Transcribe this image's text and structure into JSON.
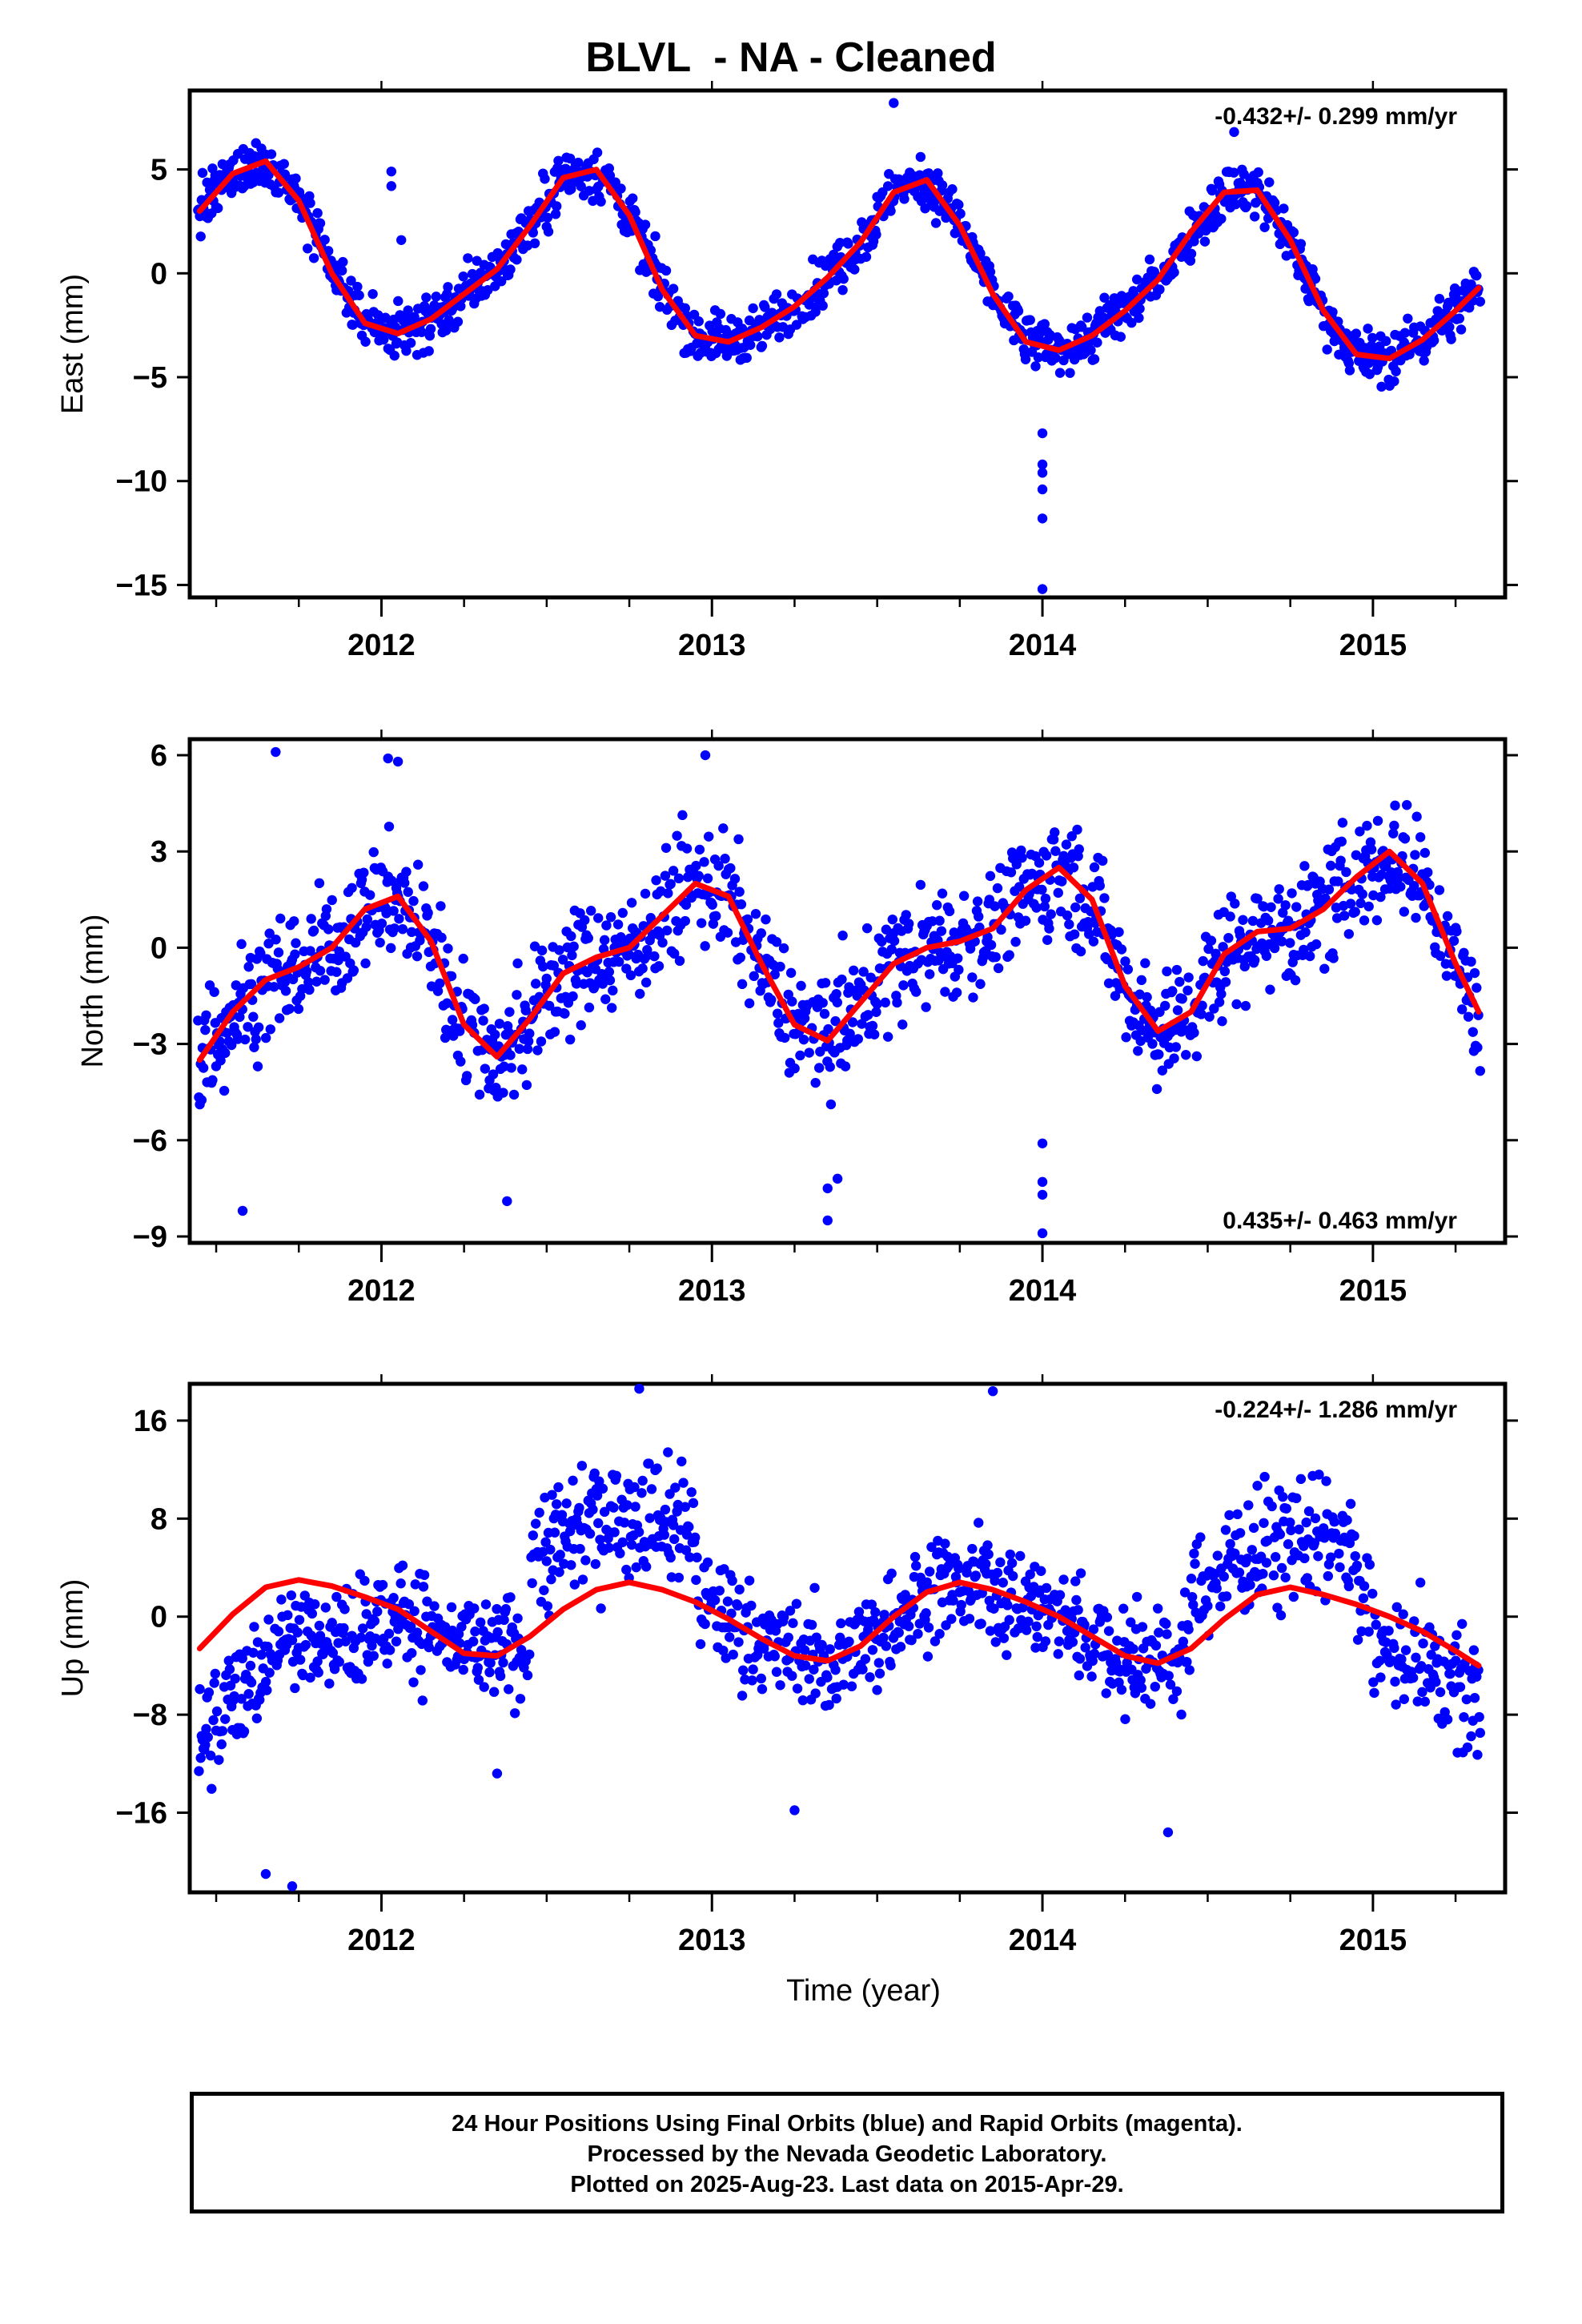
{
  "title": "BLVL  - NA - Cleaned",
  "colors": {
    "points": "#0000ff",
    "fit": "#ff0000",
    "frame": "#000000"
  },
  "chart_data": [
    {
      "type": "scatter",
      "ylabel": "East (mm)",
      "xlabel": "",
      "xlim": [
        2011.42,
        2015.4
      ],
      "ylim": [
        -15.6,
        8.8
      ],
      "x_ticks": [
        2012,
        2013,
        2014,
        2015
      ],
      "x_tick_labels": [
        "2012",
        "2013",
        "2014",
        "2015"
      ],
      "y_ticks": [
        5,
        0,
        -5,
        -10,
        -15
      ],
      "y_tick_labels": [
        "5",
        "0",
        "−5",
        "−10",
        "−15"
      ],
      "rate_label": "-0.432+/- 0.299 mm/yr",
      "rate_position": "top-right",
      "series": [
        {
          "type": "line",
          "x": [
            2011.45,
            2011.55,
            2011.65,
            2011.75,
            2011.85,
            2011.95,
            2012.05,
            2012.15,
            2012.25,
            2012.35,
            2012.45,
            2012.55,
            2012.65,
            2012.75,
            2012.85,
            2012.95,
            2013.05,
            2013.15,
            2013.25,
            2013.35,
            2013.45,
            2013.55,
            2013.65,
            2013.75,
            2013.85,
            2013.95,
            2014.05,
            2014.15,
            2014.25,
            2014.35,
            2014.45,
            2014.55,
            2014.65,
            2014.75,
            2014.85,
            2014.95,
            2015.05,
            2015.15,
            2015.25,
            2015.32
          ],
          "values": [
            3.0,
            4.8,
            5.4,
            3.5,
            0.0,
            -2.4,
            -2.9,
            -2.2,
            -1.0,
            0.2,
            2.3,
            4.6,
            5.0,
            2.8,
            -0.8,
            -3.0,
            -3.3,
            -2.6,
            -1.6,
            -0.2,
            1.5,
            3.9,
            4.5,
            2.3,
            -1.0,
            -3.3,
            -3.7,
            -3.0,
            -1.8,
            -0.3,
            2.0,
            3.9,
            4.0,
            1.6,
            -1.8,
            -3.9,
            -4.1,
            -3.2,
            -1.8,
            -0.7
          ]
        }
      ],
      "outliers": [
        [
          2014.0,
          -7.7
        ],
        [
          2014.0,
          -9.2
        ],
        [
          2014.0,
          -9.6
        ],
        [
          2014.0,
          -10.4
        ],
        [
          2014.0,
          -11.8
        ],
        [
          2014.0,
          -15.2
        ],
        [
          2012.03,
          4.9
        ],
        [
          2012.03,
          4.2
        ],
        [
          2012.06,
          1.6
        ],
        [
          2013.55,
          8.2
        ],
        [
          2014.58,
          6.8
        ]
      ]
    },
    {
      "type": "scatter",
      "ylabel": "North (mm)",
      "xlabel": "",
      "xlim": [
        2011.42,
        2015.4
      ],
      "ylim": [
        -9.2,
        6.5
      ],
      "x_ticks": [
        2012,
        2013,
        2014,
        2015
      ],
      "x_tick_labels": [
        "2012",
        "2013",
        "2014",
        "2015"
      ],
      "y_ticks": [
        6,
        3,
        0,
        -3,
        -6,
        -9
      ],
      "y_tick_labels": [
        "6",
        "3",
        "0",
        "−3",
        "−6",
        "−9"
      ],
      "rate_label": "0.435+/- 0.463 mm/yr",
      "rate_position": "bottom-right",
      "series": [
        {
          "type": "line",
          "x": [
            2011.45,
            2011.55,
            2011.65,
            2011.75,
            2011.85,
            2011.95,
            2012.05,
            2012.15,
            2012.25,
            2012.35,
            2012.45,
            2012.55,
            2012.65,
            2012.75,
            2012.85,
            2012.95,
            2013.05,
            2013.15,
            2013.25,
            2013.35,
            2013.45,
            2013.55,
            2013.65,
            2013.75,
            2013.85,
            2013.95,
            2014.05,
            2014.15,
            2014.25,
            2014.35,
            2014.45,
            2014.55,
            2014.65,
            2014.75,
            2014.85,
            2014.95,
            2015.05,
            2015.15,
            2015.25,
            2015.32
          ],
          "values": [
            -3.5,
            -2.0,
            -1.0,
            -0.6,
            0.0,
            1.2,
            1.6,
            0.2,
            -2.4,
            -3.4,
            -2.2,
            -0.8,
            -0.3,
            0.0,
            1.0,
            2.0,
            1.6,
            -0.5,
            -2.4,
            -2.9,
            -1.7,
            -0.5,
            0.0,
            0.2,
            0.6,
            1.8,
            2.5,
            1.5,
            -1.2,
            -2.6,
            -2.0,
            -0.2,
            0.5,
            0.6,
            1.2,
            2.2,
            3.0,
            2.0,
            -0.5,
            -2.0
          ]
        }
      ],
      "outliers": [
        [
          2014.0,
          -6.1
        ],
        [
          2014.0,
          -7.3
        ],
        [
          2014.0,
          -7.7
        ],
        [
          2014.0,
          -8.9
        ],
        [
          2013.35,
          -7.5
        ],
        [
          2013.35,
          -8.5
        ],
        [
          2013.38,
          -7.2
        ],
        [
          2011.58,
          -8.2
        ],
        [
          2012.38,
          -7.9
        ],
        [
          2011.68,
          6.1
        ],
        [
          2012.02,
          5.9
        ],
        [
          2012.05,
          5.8
        ],
        [
          2012.98,
          6.0
        ]
      ]
    },
    {
      "type": "scatter",
      "ylabel": "Up (mm)",
      "xlabel": "Time (year)",
      "xlim": [
        2011.42,
        2015.4
      ],
      "ylim": [
        -22.5,
        19.0
      ],
      "x_ticks": [
        2012,
        2013,
        2014,
        2015
      ],
      "x_tick_labels": [
        "2012",
        "2013",
        "2014",
        "2015"
      ],
      "y_ticks": [
        16,
        8,
        0,
        -8,
        -16
      ],
      "y_tick_labels": [
        "16",
        "8",
        "0",
        "−8",
        "−16"
      ],
      "rate_label": "-0.224+/- 1.286 mm/yr",
      "rate_position": "top-right",
      "series": [
        {
          "type": "line",
          "x": [
            2011.45,
            2011.55,
            2011.65,
            2011.75,
            2011.85,
            2011.95,
            2012.05,
            2012.15,
            2012.25,
            2012.35,
            2012.45,
            2012.55,
            2012.65,
            2012.75,
            2012.85,
            2012.95,
            2013.05,
            2013.15,
            2013.25,
            2013.35,
            2013.45,
            2013.55,
            2013.65,
            2013.75,
            2013.85,
            2013.95,
            2014.05,
            2014.15,
            2014.25,
            2014.35,
            2014.45,
            2014.55,
            2014.65,
            2014.75,
            2014.85,
            2014.95,
            2015.05,
            2015.15,
            2015.25,
            2015.32
          ],
          "values": [
            -2.6,
            0.2,
            2.4,
            3.0,
            2.5,
            1.6,
            0.6,
            -1.2,
            -3.0,
            -3.2,
            -1.6,
            0.6,
            2.2,
            2.8,
            2.2,
            1.2,
            -0.2,
            -1.8,
            -3.2,
            -3.6,
            -2.4,
            0.0,
            2.0,
            2.8,
            2.2,
            1.2,
            0.0,
            -1.6,
            -3.2,
            -3.8,
            -2.6,
            -0.2,
            1.8,
            2.4,
            1.8,
            1.0,
            0.0,
            -1.2,
            -2.8,
            -4.0
          ]
        }
      ],
      "outliers": [
        [
          2012.35,
          -12.8
        ],
        [
          2014.38,
          -17.6
        ],
        [
          2013.85,
          18.4
        ],
        [
          2012.78,
          18.6
        ],
        [
          2011.73,
          -22.0
        ],
        [
          2011.65,
          -21.0
        ],
        [
          2013.25,
          -15.8
        ]
      ]
    }
  ],
  "footer": {
    "line1": "24 Hour Positions Using Final Orbits (blue) and Rapid Orbits (magenta).",
    "line2": "Processed by the Nevada Geodetic Laboratory.",
    "line3": "Plotted on 2025-Aug-23. Last data on 2015-Apr-29."
  }
}
